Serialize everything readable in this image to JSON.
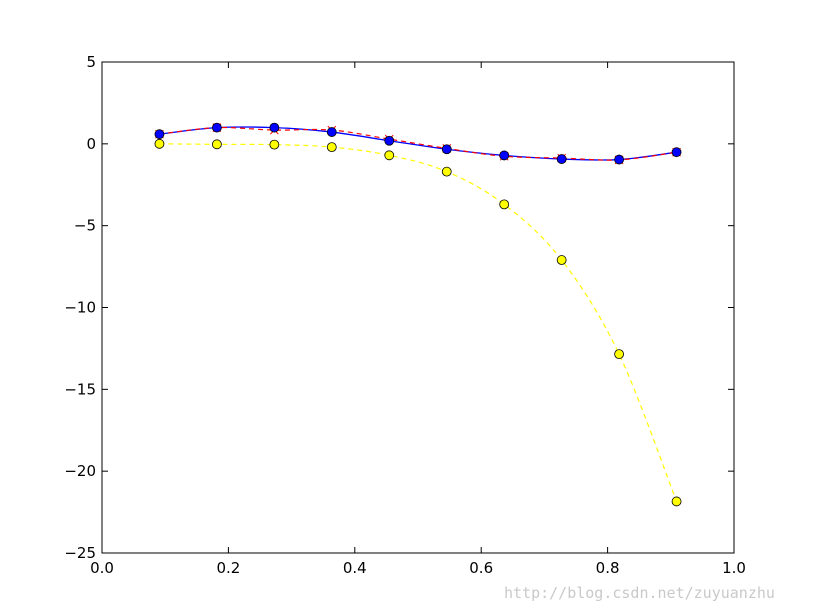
{
  "watermark": "http://blog.csdn.net/zuyuanzhu",
  "colors": {
    "red_line": "#ff0000",
    "blue_line": "#0000ff",
    "yellow_line": "#ffff00",
    "blue_marker": "#0000ff",
    "yellow_marker": "#ffff00",
    "marker_edge": "#000000"
  },
  "chart_data": {
    "type": "line",
    "title": "",
    "xlabel": "",
    "ylabel": "",
    "xlim": [
      0.0,
      1.0
    ],
    "ylim": [
      -25,
      5
    ],
    "grid": false,
    "xticks": [
      0.0,
      0.2,
      0.4,
      0.6,
      0.8,
      1.0
    ],
    "xtick_labels": [
      "0.0",
      "0.2",
      "0.4",
      "0.6",
      "0.8",
      "1.0"
    ],
    "yticks": [
      5,
      0,
      -5,
      -10,
      -15,
      -20,
      -25
    ],
    "ytick_labels": [
      "5",
      "0",
      "−5",
      "−10",
      "−15",
      "−20",
      "−25"
    ],
    "x": [
      0.0909,
      0.1818,
      0.2727,
      0.3636,
      0.4545,
      0.5455,
      0.6364,
      0.7273,
      0.8182,
      0.9091
    ],
    "series": [
      {
        "style": "red dashed line with x markers",
        "color": "#ff0000",
        "values": [
          0.59,
          0.99,
          0.84,
          0.84,
          0.29,
          -0.28,
          -0.76,
          -0.87,
          -0.98,
          -0.51
        ]
      },
      {
        "style": "blue solid line with filled circle markers",
        "color": "#0000ff",
        "values": [
          0.59,
          0.99,
          0.99,
          0.72,
          0.19,
          -0.33,
          -0.71,
          -0.93,
          -0.96,
          -0.51
        ]
      },
      {
        "style": "yellow dashed line with filled circle markers",
        "color": "#ffff00",
        "values": [
          0.0,
          -0.03,
          -0.05,
          -0.2,
          -0.7,
          -1.7,
          -3.7,
          -7.1,
          -12.85,
          -21.85
        ]
      }
    ]
  }
}
